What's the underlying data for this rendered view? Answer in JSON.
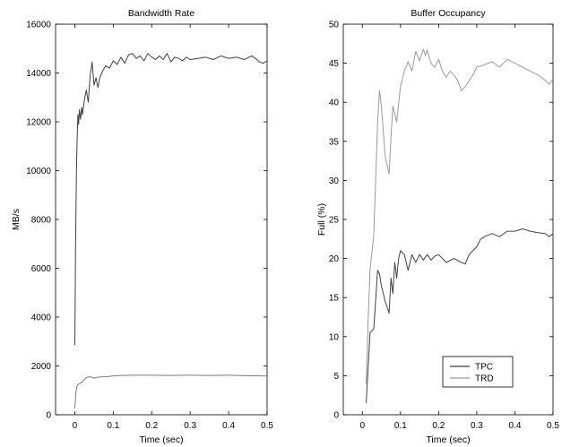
{
  "chart_data": [
    {
      "type": "line",
      "title": "Bandwidth Rate",
      "xlabel": "Time (sec)",
      "ylabel": "MB/s",
      "xlim": [
        -0.05,
        0.5
      ],
      "ylim": [
        0,
        16000
      ],
      "xticks": [
        0,
        0.1,
        0.2,
        0.3,
        0.4,
        0.5
      ],
      "xtick_labels": [
        "0",
        "0.1",
        "0.2",
        "0.3",
        "0.4",
        "0.5"
      ],
      "yticks": [
        0,
        2000,
        4000,
        6000,
        8000,
        10000,
        12000,
        14000,
        16000
      ],
      "ytick_labels": [
        "0",
        "2000",
        "4000",
        "6000",
        "8000",
        "10000",
        "12000",
        "14000",
        "16000"
      ],
      "grid": false,
      "series": [
        {
          "color": "#404040",
          "x": [
            0.0,
            0.002,
            0.004,
            0.006,
            0.008,
            0.01,
            0.012,
            0.015,
            0.018,
            0.02,
            0.025,
            0.03,
            0.035,
            0.04,
            0.045,
            0.05,
            0.055,
            0.06,
            0.065,
            0.07,
            0.08,
            0.09,
            0.1,
            0.11,
            0.12,
            0.13,
            0.14,
            0.15,
            0.16,
            0.17,
            0.18,
            0.19,
            0.2,
            0.21,
            0.22,
            0.23,
            0.24,
            0.25,
            0.26,
            0.27,
            0.28,
            0.29,
            0.3,
            0.32,
            0.34,
            0.36,
            0.38,
            0.4,
            0.42,
            0.44,
            0.46,
            0.47,
            0.48,
            0.49,
            0.5
          ],
          "y": [
            2850,
            6800,
            9800,
            11200,
            12300,
            11900,
            12500,
            12100,
            12600,
            12300,
            12900,
            13300,
            12800,
            13900,
            14450,
            13500,
            13800,
            13400,
            13800,
            14000,
            14300,
            14200,
            14500,
            14350,
            14650,
            14400,
            14750,
            14800,
            14600,
            14700,
            14500,
            14800,
            14650,
            14550,
            14700,
            14550,
            14800,
            14450,
            14650,
            14600,
            14500,
            14650,
            14550,
            14600,
            14650,
            14550,
            14700,
            14600,
            14650,
            14550,
            14700,
            14600,
            14450,
            14400,
            14500
          ]
        },
        {
          "color": "#7a7a7a",
          "x": [
            0.0,
            0.003,
            0.006,
            0.01,
            0.015,
            0.02,
            0.025,
            0.03,
            0.04,
            0.05,
            0.06,
            0.08,
            0.1,
            0.12,
            0.15,
            0.2,
            0.25,
            0.3,
            0.35,
            0.4,
            0.45,
            0.5
          ],
          "y": [
            250,
            900,
            1200,
            1250,
            1300,
            1350,
            1450,
            1520,
            1560,
            1500,
            1540,
            1560,
            1590,
            1610,
            1620,
            1620,
            1610,
            1620,
            1610,
            1620,
            1600,
            1590
          ]
        }
      ]
    },
    {
      "type": "line",
      "title": "Buffer Occupancy",
      "xlabel": "Time (sec)",
      "ylabel": "Full (%)",
      "xlim": [
        -0.05,
        0.5
      ],
      "ylim": [
        0,
        50
      ],
      "xticks": [
        0,
        0.1,
        0.2,
        0.3,
        0.4,
        0.5
      ],
      "xtick_labels": [
        "0",
        "0.1",
        "0.2",
        "0.3",
        "0.4",
        "0.5"
      ],
      "yticks": [
        0,
        5,
        10,
        15,
        20,
        25,
        30,
        35,
        40,
        45,
        50
      ],
      "ytick_labels": [
        "0",
        "5",
        "10",
        "15",
        "20",
        "25",
        "30",
        "35",
        "40",
        "45",
        "50"
      ],
      "grid": false,
      "legend": "bottom-right",
      "series": [
        {
          "name": "TPC",
          "color": "#404040",
          "x": [
            0.01,
            0.015,
            0.02,
            0.03,
            0.04,
            0.045,
            0.05,
            0.06,
            0.07,
            0.075,
            0.08,
            0.085,
            0.09,
            0.095,
            0.1,
            0.11,
            0.12,
            0.13,
            0.14,
            0.15,
            0.16,
            0.17,
            0.18,
            0.19,
            0.2,
            0.22,
            0.24,
            0.26,
            0.27,
            0.28,
            0.3,
            0.31,
            0.32,
            0.34,
            0.36,
            0.38,
            0.4,
            0.42,
            0.44,
            0.46,
            0.48,
            0.49,
            0.5
          ],
          "y": [
            1.5,
            6,
            10.5,
            11,
            18.5,
            18,
            16.5,
            14.5,
            13,
            17.5,
            15.5,
            19.5,
            17.5,
            20,
            21,
            20.5,
            18.5,
            20.5,
            19.5,
            20.5,
            19.8,
            20.5,
            19.8,
            20.3,
            20.5,
            19.5,
            20,
            19.5,
            19.3,
            20.5,
            21.5,
            22.5,
            22.8,
            23.2,
            22.8,
            23.5,
            23.5,
            23.8,
            23.5,
            23.3,
            23.2,
            22.8,
            23.2
          ]
        },
        {
          "name": "TRD",
          "color": "#9a9a9a",
          "x": [
            0.01,
            0.015,
            0.02,
            0.03,
            0.04,
            0.045,
            0.05,
            0.06,
            0.07,
            0.075,
            0.08,
            0.09,
            0.1,
            0.11,
            0.12,
            0.13,
            0.14,
            0.15,
            0.16,
            0.165,
            0.17,
            0.18,
            0.19,
            0.2,
            0.21,
            0.22,
            0.23,
            0.24,
            0.25,
            0.26,
            0.27,
            0.28,
            0.29,
            0.3,
            0.32,
            0.34,
            0.36,
            0.38,
            0.4,
            0.42,
            0.44,
            0.46,
            0.48,
            0.49,
            0.5
          ],
          "y": [
            4,
            12,
            18.5,
            23,
            37.5,
            41.5,
            39.5,
            33,
            30.8,
            35.5,
            39.5,
            37.5,
            42,
            44,
            45.2,
            44,
            46.5,
            45.3,
            46.8,
            46,
            46.7,
            45,
            44.5,
            45.5,
            44,
            43.2,
            44,
            43.5,
            42.8,
            41.5,
            42,
            42.8,
            43.5,
            44.5,
            44.8,
            45.2,
            44.5,
            45.5,
            45,
            44.5,
            44,
            43.5,
            42.8,
            42.3,
            43
          ]
        }
      ]
    }
  ]
}
